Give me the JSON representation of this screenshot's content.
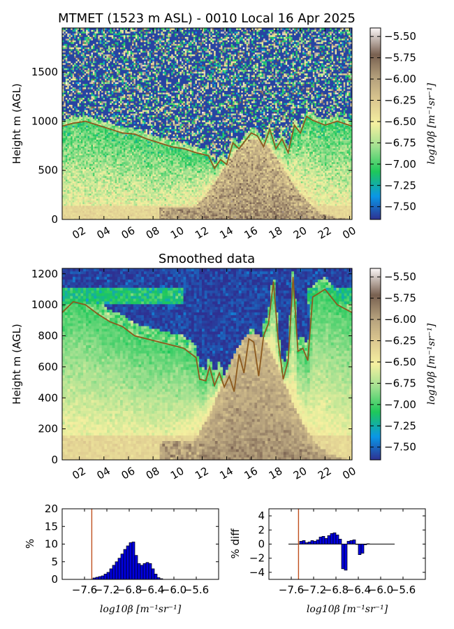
{
  "chart_data": [
    {
      "type": "heatmap",
      "title": "MTMET (1523 m ASL) - 0010 Local 16 Apr 2025",
      "xlabel": "",
      "ylabel": "Height m (AGL)",
      "x_ticks": [
        "02",
        "04",
        "06",
        "08",
        "10",
        "12",
        "14",
        "16",
        "18",
        "20",
        "22",
        "00"
      ],
      "x_range_hours": [
        0.6,
        24.2
      ],
      "y_ticks": [
        0,
        500,
        1000,
        1500
      ],
      "ylim": [
        0,
        1950
      ],
      "colorbar": {
        "label": "log10β [m⁻¹sr⁻¹]",
        "ticks": [
          "-5.50",
          "-5.75",
          "-6.00",
          "-6.25",
          "-6.50",
          "-6.75",
          "-7.00",
          "-7.25",
          "-7.50"
        ],
        "range": [
          -7.65,
          -5.4
        ],
        "colors": [
          "#2e3192",
          "#0a96e6",
          "#1ec85a",
          "#a0e090",
          "#f5f0a0",
          "#dcc890",
          "#b4a07c",
          "#786050",
          "#fcf8f8"
        ]
      },
      "boundary_layer_height": {
        "hours": [
          0.6,
          1.5,
          2.5,
          3.5,
          4.5,
          5.5,
          6.5,
          7.5,
          8.5,
          9.5,
          10.5,
          11.5,
          12.5,
          13.0,
          13.5,
          14.0,
          14.5,
          15.0,
          15.5,
          16.0,
          16.5,
          17.0,
          17.5,
          18.0,
          18.5,
          19.0,
          19.5,
          20.0,
          20.5,
          21.0,
          22.0,
          23.0,
          24.2
        ],
        "heights": [
          950,
          980,
          1000,
          960,
          920,
          880,
          870,
          820,
          780,
          740,
          720,
          680,
          650,
          520,
          610,
          560,
          780,
          720,
          800,
          880,
          850,
          740,
          920,
          720,
          820,
          680,
          960,
          880,
          1050,
          1010,
          960,
          1000,
          950
        ]
      }
    },
    {
      "type": "heatmap",
      "title": "Smoothed data",
      "xlabel": "",
      "ylabel": "Height m (AGL)",
      "x_ticks": [
        "02",
        "04",
        "06",
        "08",
        "10",
        "12",
        "14",
        "16",
        "18",
        "20",
        "22",
        "00"
      ],
      "x_range_hours": [
        0.6,
        24.2
      ],
      "y_ticks": [
        0,
        200,
        400,
        600,
        800,
        1000,
        1200
      ],
      "ylim": [
        0,
        1235
      ],
      "colorbar": {
        "label": "log10β [m⁻¹sr⁻¹]",
        "ticks": [
          "-5.50",
          "-5.75",
          "-6.00",
          "-6.25",
          "-6.50",
          "-6.75",
          "-7.00",
          "-7.25",
          "-7.50"
        ],
        "range": [
          -7.65,
          -5.4
        ]
      },
      "boundary_layer_height": {
        "hours": [
          0.6,
          1.5,
          2.5,
          3.5,
          4.5,
          5.5,
          6.5,
          7.5,
          8.5,
          9.5,
          10.5,
          11.5,
          11.8,
          12.3,
          12.6,
          13.0,
          13.4,
          13.8,
          14.2,
          14.6,
          15.0,
          15.4,
          15.8,
          16.2,
          16.6,
          17.0,
          17.4,
          17.8,
          18.2,
          18.6,
          19.0,
          19.4,
          19.8,
          20.2,
          20.6,
          21.0,
          22.0,
          23.0,
          24.2
        ],
        "heights": [
          950,
          1020,
          1000,
          940,
          890,
          860,
          800,
          780,
          760,
          740,
          720,
          660,
          520,
          510,
          600,
          480,
          560,
          470,
          540,
          440,
          680,
          560,
          780,
          760,
          540,
          800,
          880,
          1150,
          760,
          520,
          640,
          1180,
          700,
          720,
          640,
          1050,
          1100,
          1000,
          950
        ]
      }
    },
    {
      "type": "bar",
      "title": "",
      "xlabel": "log10β [m⁻¹sr⁻¹]",
      "ylabel": "%",
      "x_ticks": [
        "-7.6",
        "-7.2",
        "-6.8",
        "-6.4",
        "-6.0",
        "-5.6"
      ],
      "xlim": [
        -8.0,
        -5.2
      ],
      "ylim": [
        0,
        20
      ],
      "y_ticks": [
        0,
        5,
        10,
        15,
        20
      ],
      "bin_width": 0.05,
      "bin_starts": [
        -7.45,
        -7.4,
        -7.35,
        -7.3,
        -7.25,
        -7.2,
        -7.15,
        -7.1,
        -7.05,
        -7.0,
        -6.95,
        -6.9,
        -6.85,
        -6.8,
        -6.75,
        -6.7,
        -6.65,
        -6.6,
        -6.55,
        -6.5,
        -6.45,
        -6.4,
        -6.35,
        -6.3,
        -6.25
      ],
      "values": [
        0.4,
        0.6,
        0.8,
        1.0,
        1.5,
        2.0,
        3.0,
        4.0,
        5.0,
        6.0,
        7.2,
        8.5,
        9.5,
        10.4,
        10.6,
        6.8,
        4.5,
        4.0,
        4.5,
        4.8,
        4.5,
        3.0,
        1.5,
        0.5,
        0.2
      ],
      "reference_line_x": -7.47
    },
    {
      "type": "bar",
      "title": "",
      "xlabel": "log10β [m⁻¹sr⁻¹]",
      "ylabel": "% diff",
      "x_ticks": [
        "-7.6",
        "-7.2",
        "-6.8",
        "-6.4",
        "-6.0",
        "-5.6"
      ],
      "xlim": [
        -8.0,
        -5.2
      ],
      "ylim": [
        -5,
        5
      ],
      "y_ticks": [
        -4,
        -2,
        0,
        2,
        4
      ],
      "bin_width": 0.05,
      "bin_starts": [
        -7.45,
        -7.4,
        -7.35,
        -7.3,
        -7.25,
        -7.2,
        -7.15,
        -7.1,
        -7.05,
        -7.0,
        -6.95,
        -6.9,
        -6.85,
        -6.8,
        -6.75,
        -6.7,
        -6.65,
        -6.6,
        -6.55,
        -6.5,
        -6.45,
        -6.4,
        -6.35,
        -6.3,
        -6.25
      ],
      "values": [
        0.4,
        0.5,
        0.2,
        0.3,
        0.5,
        0.4,
        0.6,
        1.0,
        1.1,
        0.8,
        1.2,
        1.5,
        1.6,
        1.3,
        0.7,
        -3.5,
        -3.7,
        0.4,
        0.5,
        0.6,
        0.0,
        -1.5,
        -1.3,
        -0.1,
        0.05
      ],
      "baseline_range": [
        -7.65,
        -5.75
      ],
      "reference_line_x": -7.47
    }
  ]
}
